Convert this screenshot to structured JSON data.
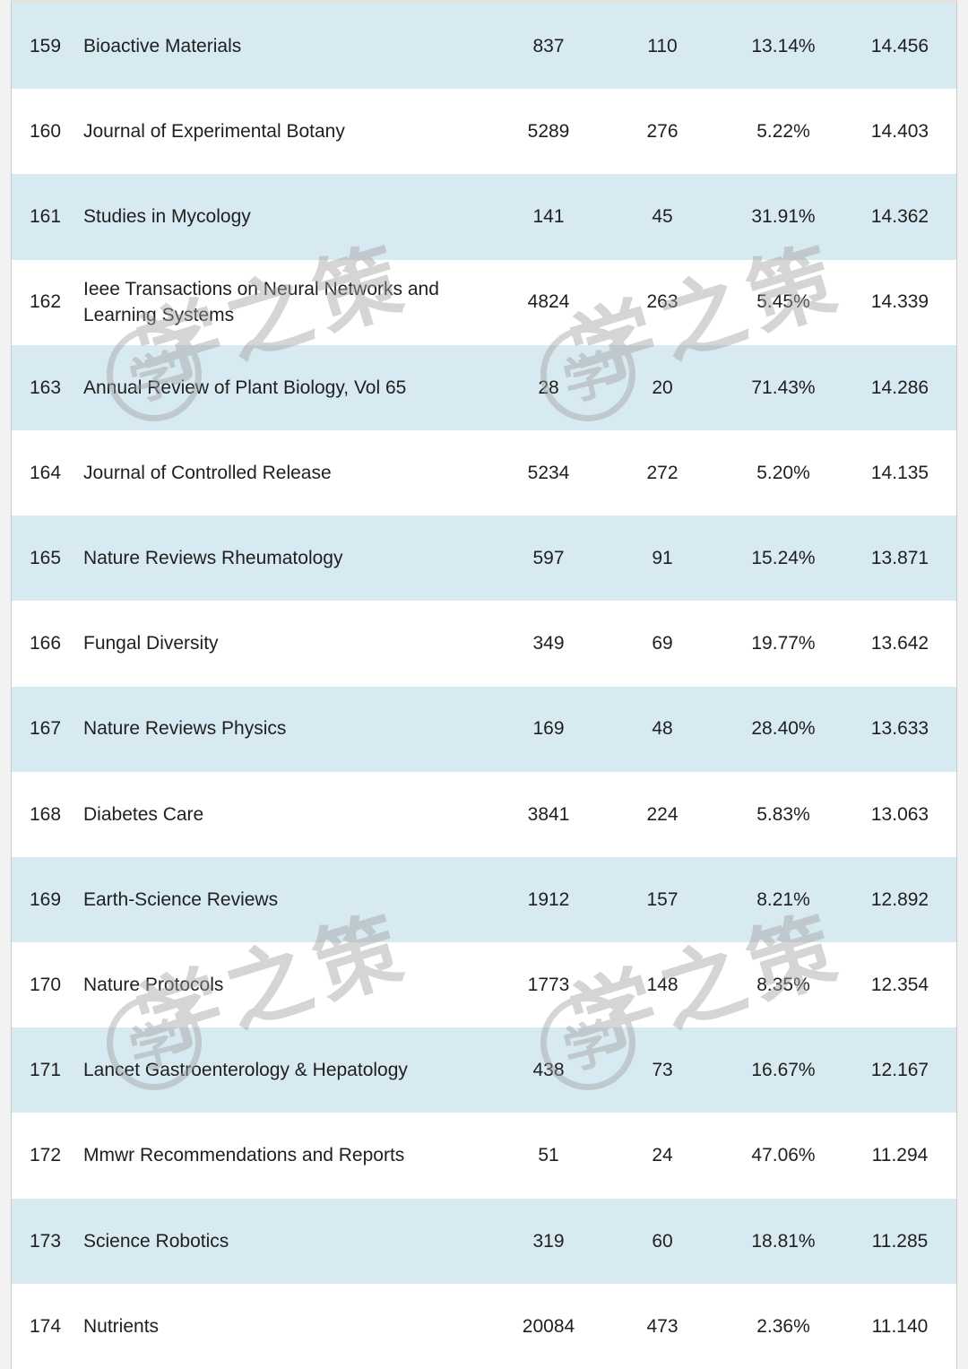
{
  "watermark": {
    "text": "学之策",
    "chars": [
      "学",
      "之",
      "策"
    ],
    "logo_char": "学"
  },
  "colors": {
    "row_alt_blue": "#d7e9f1",
    "row_white": "#ffffff",
    "text": "#1f1f1f",
    "watermark_gray": "#a3a3a3"
  },
  "table": {
    "rows": [
      {
        "rank": "159",
        "name": "Bioactive Materials",
        "values": [
          "837",
          "110",
          "13.14%",
          "14.456"
        ]
      },
      {
        "rank": "160",
        "name": "Journal of Experimental Botany",
        "values": [
          "5289",
          "276",
          "5.22%",
          "14.403"
        ]
      },
      {
        "rank": "161",
        "name": "Studies in Mycology",
        "values": [
          "141",
          "45",
          "31.91%",
          "14.362"
        ]
      },
      {
        "rank": "162",
        "name": "Ieee Transactions on Neural Networks and Learning Systems",
        "values": [
          "4824",
          "263",
          "5.45%",
          "14.339"
        ]
      },
      {
        "rank": "163",
        "name": "Annual Review of Plant Biology, Vol 65",
        "values": [
          "28",
          "20",
          "71.43%",
          "14.286"
        ]
      },
      {
        "rank": "164",
        "name": "Journal of Controlled Release",
        "values": [
          "5234",
          "272",
          "5.20%",
          "14.135"
        ]
      },
      {
        "rank": "165",
        "name": "Nature Reviews Rheumatology",
        "values": [
          "597",
          "91",
          "15.24%",
          "13.871"
        ]
      },
      {
        "rank": "166",
        "name": "Fungal Diversity",
        "values": [
          "349",
          "69",
          "19.77%",
          "13.642"
        ]
      },
      {
        "rank": "167",
        "name": "Nature Reviews Physics",
        "values": [
          "169",
          "48",
          "28.40%",
          "13.633"
        ]
      },
      {
        "rank": "168",
        "name": "Diabetes Care",
        "values": [
          "3841",
          "224",
          "5.83%",
          "13.063"
        ]
      },
      {
        "rank": "169",
        "name": "Earth-Science Reviews",
        "values": [
          "1912",
          "157",
          "8.21%",
          "12.892"
        ]
      },
      {
        "rank": "170",
        "name": "Nature Protocols",
        "values": [
          "1773",
          "148",
          "8.35%",
          "12.354"
        ]
      },
      {
        "rank": "171",
        "name": "Lancet Gastroenterology & Hepatology",
        "values": [
          "438",
          "73",
          "16.67%",
          "12.167"
        ]
      },
      {
        "rank": "172",
        "name": "Mmwr Recommendations and Reports",
        "values": [
          "51",
          "24",
          "47.06%",
          "11.294"
        ]
      },
      {
        "rank": "173",
        "name": "Science Robotics",
        "values": [
          "319",
          "60",
          "18.81%",
          "11.285"
        ]
      },
      {
        "rank": "174",
        "name": "Nutrients",
        "values": [
          "20084",
          "473",
          "2.36%",
          "11.140"
        ]
      }
    ]
  }
}
